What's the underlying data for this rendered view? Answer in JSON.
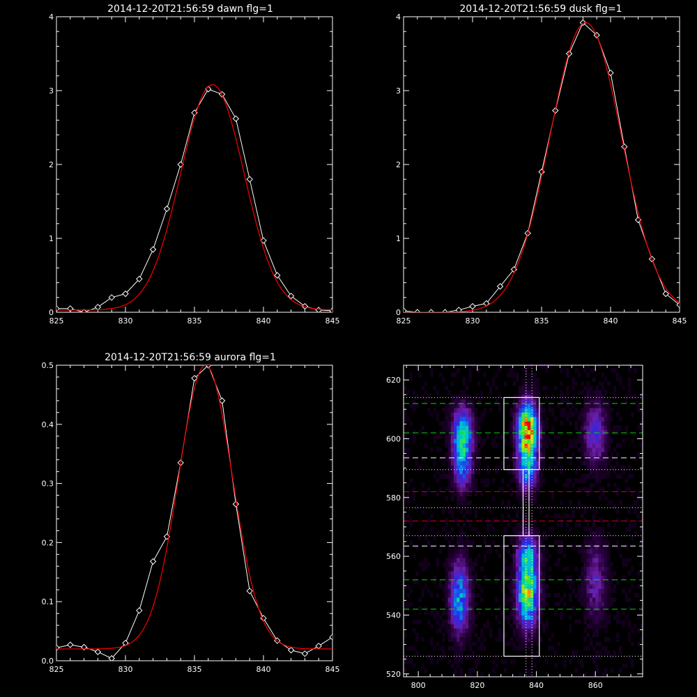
{
  "chart_data": [
    {
      "id": "dawn",
      "type": "line",
      "title": "2014-12-20T21:56:59 dawn flg=1",
      "xlim": [
        825,
        845
      ],
      "ylim": [
        0,
        4
      ],
      "xticks": [
        825,
        830,
        835,
        840,
        845
      ],
      "yticks": [
        0,
        1,
        2,
        3,
        4
      ],
      "grid": false,
      "series": [
        {
          "style": "data",
          "color": "#ffffff",
          "marker": "diamond",
          "x": [
            825,
            826,
            827,
            828,
            829,
            830,
            831,
            832,
            833,
            834,
            835,
            836,
            837,
            838,
            839,
            840,
            841,
            842,
            843,
            844,
            845
          ],
          "y": [
            0.05,
            0.05,
            0.0,
            0.07,
            0.2,
            0.25,
            0.45,
            0.85,
            1.4,
            2.0,
            2.7,
            3.02,
            2.95,
            2.62,
            1.8,
            0.97,
            0.5,
            0.22,
            0.08,
            0.03,
            0.02
          ]
        },
        {
          "style": "fit",
          "color": "#ff0000",
          "gaussian": {
            "amplitude": 3.05,
            "center": 836.3,
            "sigma": 2.3,
            "offset": 0.03
          }
        }
      ]
    },
    {
      "id": "dusk",
      "type": "line",
      "title": "2014-12-20T21:56:59 dusk flg=1",
      "xlim": [
        825,
        845
      ],
      "ylim": [
        0,
        4
      ],
      "xticks": [
        825,
        830,
        835,
        840,
        845
      ],
      "yticks": [
        0,
        1,
        2,
        3,
        4
      ],
      "grid": false,
      "series": [
        {
          "style": "data",
          "color": "#ffffff",
          "marker": "diamond",
          "x": [
            825,
            826,
            827,
            828,
            829,
            830,
            831,
            832,
            833,
            834,
            835,
            836,
            837,
            838,
            839,
            840,
            841,
            842,
            843,
            844,
            845
          ],
          "y": [
            0.02,
            0.0,
            0.0,
            0.0,
            0.03,
            0.08,
            0.12,
            0.35,
            0.58,
            1.07,
            1.9,
            2.73,
            3.5,
            3.92,
            3.75,
            3.24,
            2.24,
            1.25,
            0.72,
            0.25,
            0.1
          ]
        },
        {
          "style": "fit",
          "color": "#ff0000",
          "gaussian": {
            "amplitude": 3.92,
            "center": 838.2,
            "sigma": 2.6,
            "offset": 0.0
          }
        }
      ]
    },
    {
      "id": "aurora",
      "type": "line",
      "title": "2014-12-20T21:56:59 aurora flg=1",
      "xlim": [
        825,
        845
      ],
      "ylim": [
        0,
        0.5
      ],
      "xticks": [
        825,
        830,
        835,
        840,
        845
      ],
      "yticks": [
        0.0,
        0.1,
        0.2,
        0.3,
        0.4,
        0.5
      ],
      "ytick_labels": [
        "0.0",
        "0.1",
        "0.2",
        "0.3",
        "0.4",
        "0.5"
      ],
      "grid": false,
      "series": [
        {
          "style": "data",
          "color": "#ffffff",
          "marker": "diamond",
          "x": [
            825,
            826,
            827,
            828,
            829,
            830,
            831,
            832,
            833,
            834,
            835,
            836,
            837,
            838,
            839,
            840,
            841,
            842,
            843,
            844,
            845
          ],
          "y": [
            0.022,
            0.027,
            0.023,
            0.015,
            0.004,
            0.03,
            0.085,
            0.168,
            0.21,
            0.335,
            0.478,
            0.5,
            0.44,
            0.265,
            0.118,
            0.072,
            0.034,
            0.018,
            0.012,
            0.025,
            0.04
          ]
        },
        {
          "style": "fit",
          "color": "#ff0000",
          "gaussian": {
            "amplitude": 0.48,
            "center": 835.8,
            "sigma": 1.95,
            "offset": 0.02
          }
        }
      ]
    },
    {
      "id": "spectral-image",
      "type": "heatmap",
      "xlim": [
        795,
        876
      ],
      "ylim": [
        519,
        625
      ],
      "xticks": [
        800,
        820,
        840,
        860
      ],
      "yticks": [
        520,
        540,
        560,
        580,
        600,
        620
      ],
      "blobs": [
        {
          "x": 837,
          "y": 603,
          "sx": 2.2,
          "sy": 6,
          "amp": 1.0
        },
        {
          "x": 837,
          "y": 590,
          "sx": 2.2,
          "sy": 5,
          "amp": 0.45
        },
        {
          "x": 837,
          "y": 547,
          "sx": 2.3,
          "sy": 7,
          "amp": 0.75
        },
        {
          "x": 837,
          "y": 560,
          "sx": 2.3,
          "sy": 5,
          "amp": 0.42
        },
        {
          "x": 815,
          "y": 601,
          "sx": 2.2,
          "sy": 6,
          "amp": 0.62
        },
        {
          "x": 815,
          "y": 589,
          "sx": 2.0,
          "sy": 5,
          "amp": 0.3
        },
        {
          "x": 814,
          "y": 546,
          "sx": 2.2,
          "sy": 8,
          "amp": 0.45
        },
        {
          "x": 860,
          "y": 602,
          "sx": 2.5,
          "sy": 7,
          "amp": 0.28
        },
        {
          "x": 860,
          "y": 552,
          "sx": 2.5,
          "sy": 9,
          "amp": 0.2
        }
      ],
      "hlines": [
        {
          "y": 612,
          "color": "#00dd00",
          "dash": "long"
        },
        {
          "y": 602,
          "color": "#00dd00",
          "dash": "long"
        },
        {
          "y": 593.5,
          "color": "#ffffff",
          "dash": "long"
        },
        {
          "y": 582,
          "color": "#dd0000",
          "dash": "long"
        },
        {
          "y": 572,
          "color": "#dd0000",
          "dash": "long"
        },
        {
          "y": 563.5,
          "color": "#ffffff",
          "dash": "long"
        },
        {
          "y": 552,
          "color": "#00dd00",
          "dash": "long"
        },
        {
          "y": 542,
          "color": "#00dd00",
          "dash": "long"
        },
        {
          "y": 614,
          "color": "#ffffff",
          "dash": "dot"
        },
        {
          "y": 589.5,
          "color": "#ffffff",
          "dash": "dot"
        },
        {
          "y": 576.5,
          "color": "#ffffff",
          "dash": "dot"
        },
        {
          "y": 567,
          "color": "#ffffff",
          "dash": "dot"
        },
        {
          "y": 526,
          "color": "#ffffff",
          "dash": "dot"
        }
      ],
      "vlines": [
        {
          "x": 836.5,
          "color": "#ffffff",
          "dash": "dot"
        },
        {
          "x": 838.5,
          "color": "#ffffff",
          "dash": "dot"
        }
      ],
      "boxes": [
        {
          "x0": 829,
          "x1": 841,
          "y0": 589.5,
          "y1": 614
        },
        {
          "x0": 829,
          "x1": 841,
          "y0": 526,
          "y1": 567
        }
      ],
      "connector": {
        "x0": 835.5,
        "x1": 837.5,
        "y0": 567,
        "y1": 589.5
      },
      "grid": false
    }
  ]
}
